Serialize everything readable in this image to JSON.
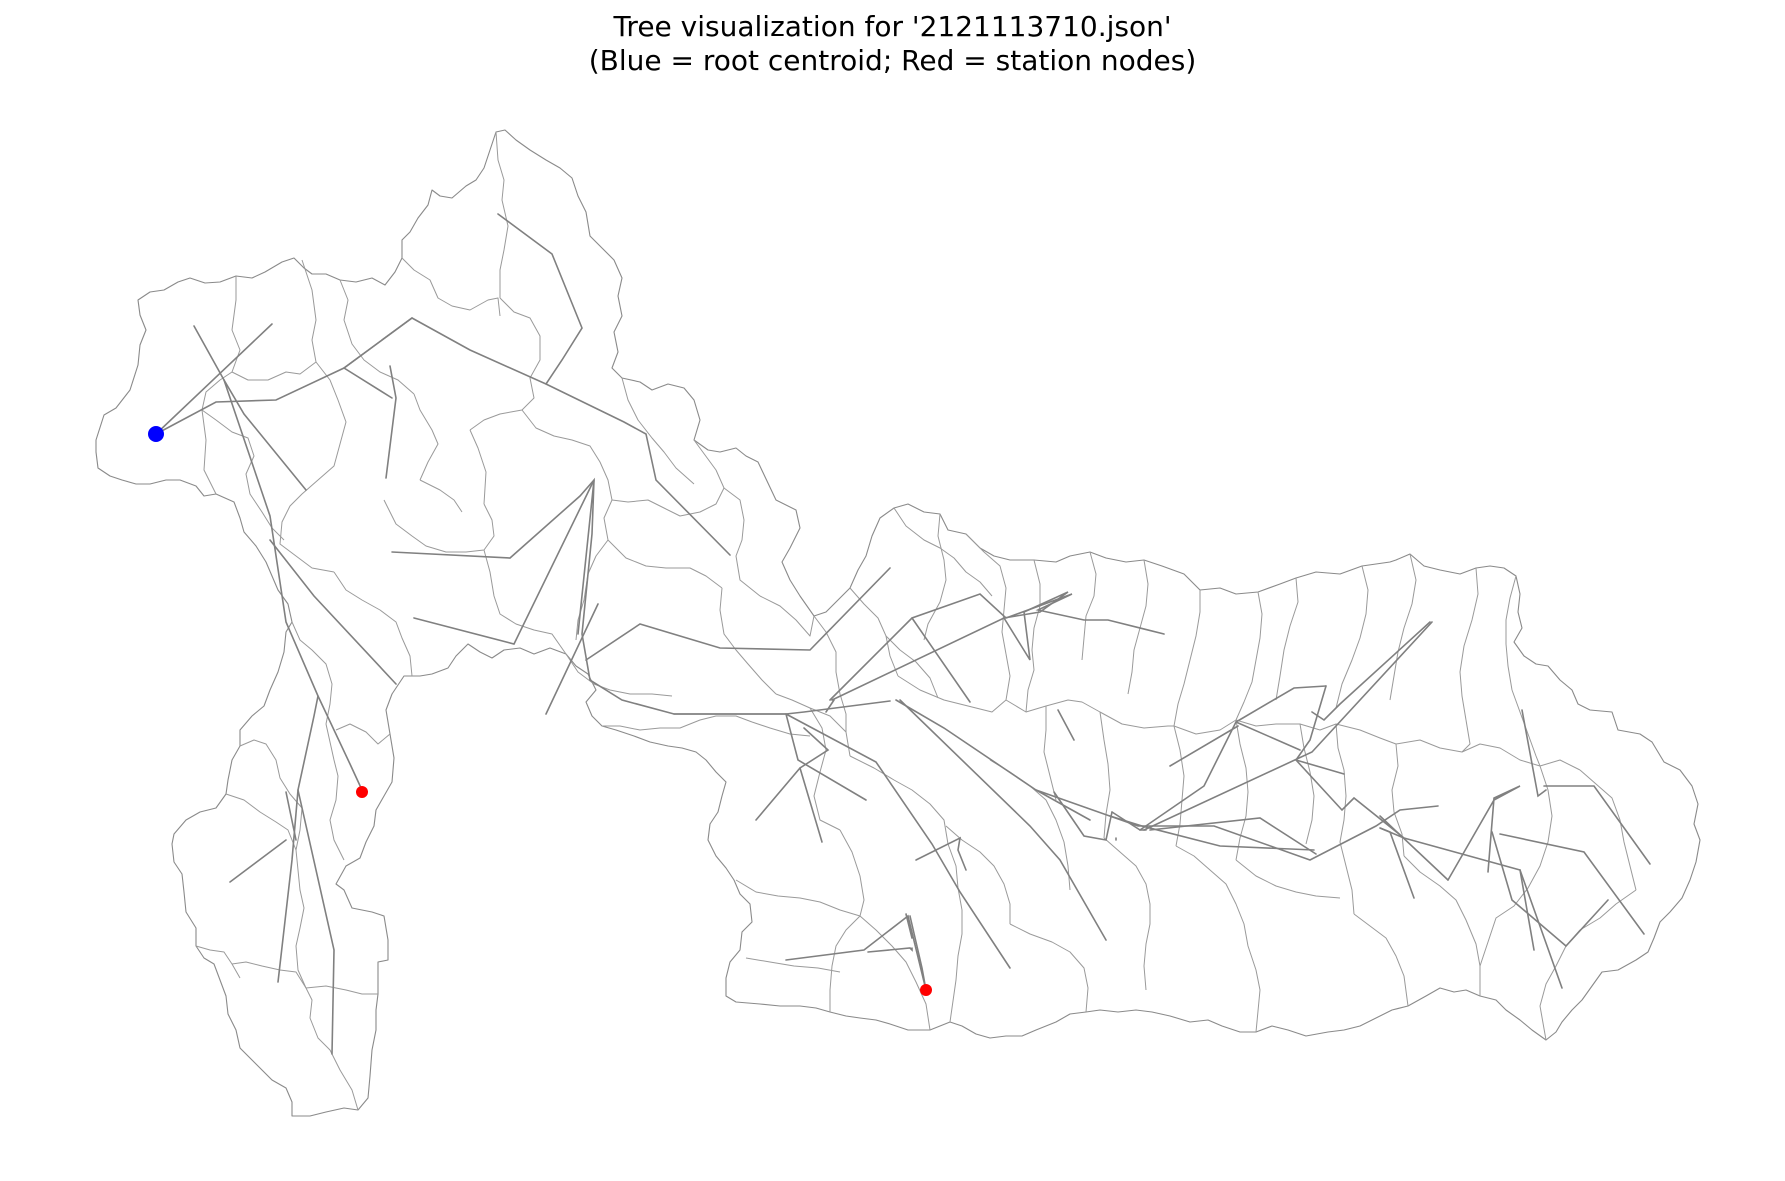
{
  "figure": {
    "title_line1": "Tree visualization for '2121113710.json'",
    "title_line2": "(Blue = root centroid; Red = station nodes)"
  },
  "colors": {
    "background": "#ffffff",
    "outline": "#8a8a8a",
    "edge": "#808080",
    "root_node": "#0000ff",
    "station_node": "#ff0000"
  },
  "legend_semantics": {
    "root_node_icon": "blue-dot-icon",
    "station_node_icon": "red-dot-icon"
  }
}
